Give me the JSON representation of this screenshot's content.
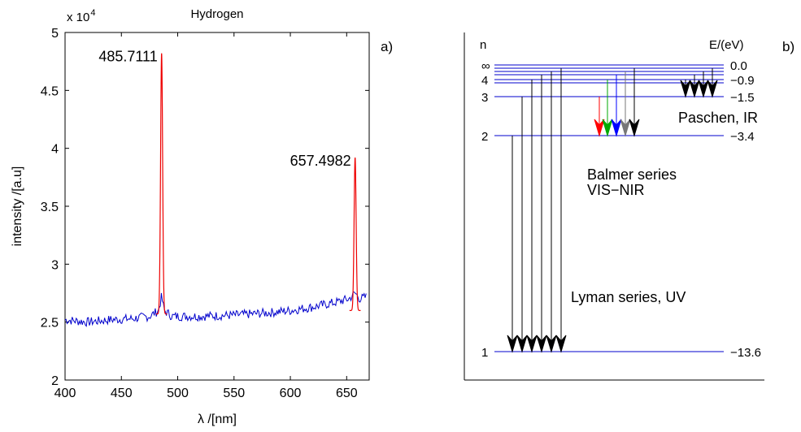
{
  "chart_data": [
    {
      "type": "line",
      "title": "Hydrogen",
      "panel_label": "a)",
      "xlabel": "λ /[nm]",
      "ylabel": "intensity /[a.u]",
      "y_multiplier": "x 10",
      "y_multiplier_exponent": "4",
      "xlim": [
        400,
        670
      ],
      "ylim": [
        2,
        5
      ],
      "xticks": [
        400,
        450,
        500,
        550,
        600,
        650
      ],
      "yticks": [
        2,
        2.5,
        3,
        3.5,
        4,
        4.5,
        5
      ],
      "grid": false,
      "colors": {
        "measured": "#0000cc",
        "fit": "#ee0000"
      },
      "series": [
        {
          "key": "measured",
          "noise_amplitude": 0.04,
          "points": [
            [
              400,
              2.52
            ],
            [
              420,
              2.5
            ],
            [
              440,
              2.52
            ],
            [
              460,
              2.53
            ],
            [
              475,
              2.55
            ],
            [
              483,
              2.6
            ],
            [
              485.7,
              2.72
            ],
            [
              488,
              2.6
            ],
            [
              495,
              2.55
            ],
            [
              520,
              2.55
            ],
            [
              550,
              2.56
            ],
            [
              580,
              2.58
            ],
            [
              600,
              2.6
            ],
            [
              620,
              2.63
            ],
            [
              640,
              2.67
            ],
            [
              652,
              2.7
            ],
            [
              657.5,
              2.75
            ],
            [
              662,
              2.7
            ],
            [
              668,
              2.72
            ]
          ]
        },
        {
          "key": "fit",
          "peaks": [
            {
              "center": 485.7111,
              "height": 4.82,
              "baseline": 2.57,
              "width": 0.9
            },
            {
              "center": 657.4982,
              "height": 3.92,
              "baseline": 2.6,
              "width": 0.9
            }
          ]
        }
      ],
      "annotations": [
        {
          "text": "485.7111",
          "x": 485.7111,
          "y": 4.82
        },
        {
          "text": "657.4982",
          "x": 657.4982,
          "y": 3.92
        }
      ]
    },
    {
      "type": "diagram",
      "panel_label": "b)",
      "n_label": "n",
      "e_label": "E/(eV)",
      "levels": [
        {
          "n": "∞",
          "energy": "0.0",
          "e": 0.0
        },
        {
          "n": "4",
          "energy": "−0.9",
          "e": -0.85
        },
        {
          "n": "3",
          "energy": "−1.5",
          "e": -1.51
        },
        {
          "n": "2",
          "energy": "−3.4",
          "e": -3.4
        },
        {
          "n": "1",
          "energy": "−13.6",
          "e": -13.6
        }
      ],
      "series_labels": {
        "lyman": "Lyman series, UV",
        "balmer_1": "Balmer series",
        "balmer_2": "VIS−NIR",
        "paschen": "Paschen, IR"
      },
      "balmer_arrow_colors": [
        "#ff0000",
        "#00aa00",
        "#0000ff",
        "#777777",
        "#000000"
      ]
    }
  ]
}
